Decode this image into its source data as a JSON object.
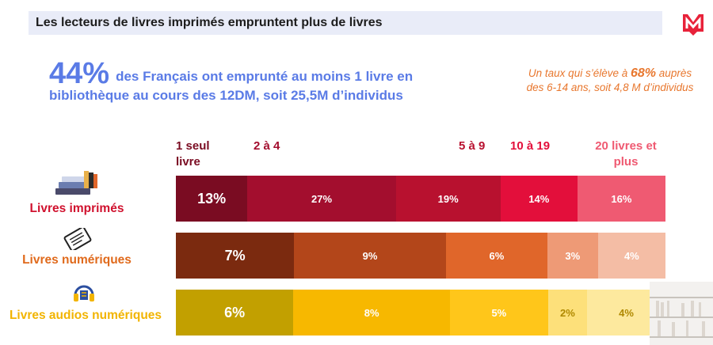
{
  "header": {
    "title": "Les lecteurs de livres imprimés empruntent plus de livres"
  },
  "headline": {
    "percent": "44%",
    "text": "des Français ont emprunté au moins 1 livre en bibliothèque au cours des 12DM, soit 25,5M d’individus"
  },
  "side_note": {
    "prefix": "Un taux qui s’élève à",
    "accent": "68%",
    "rest": "auprès des 6-14 ans, soit 4,8 M d’individus"
  },
  "colors": {
    "title_bg": "#e9ecf8",
    "headline": "#5a7be6",
    "side_note": "#e8772e",
    "logo": "#e8223a"
  },
  "chart_data": {
    "type": "bar",
    "orientation": "horizontal",
    "stacked": true,
    "categories": [
      "1 seul livre",
      "2 à 4",
      "5 à 9",
      "10 à 19",
      "20 livres et plus"
    ],
    "category_colors": [
      "#7a0c22",
      "#a30e2e",
      "#b8112f",
      "#e30f3b",
      "#ef5a72"
    ],
    "series": [
      {
        "name": "Livres imprimés",
        "icon": "books-icon",
        "label_color": "#d0112e",
        "values": [
          13,
          27,
          19,
          14,
          16
        ],
        "labels": [
          "13%",
          "27%",
          "19%",
          "14%",
          "16%"
        ],
        "colors": [
          "#7a0c22",
          "#a30e2e",
          "#b8112f",
          "#e30f3b",
          "#ef5a72"
        ],
        "text_colors": [
          "#ffffff",
          "#ffffff",
          "#ffffff",
          "#ffffff",
          "#ffffff"
        ]
      },
      {
        "name": "Livres numériques",
        "icon": "ereader-icon",
        "label_color": "#e06a1c",
        "values": [
          7,
          9,
          6,
          3,
          4
        ],
        "labels": [
          "7%",
          "9%",
          "6%",
          "3%",
          "4%"
        ],
        "colors": [
          "#7b2a0f",
          "#b3461a",
          "#e0662a",
          "#ee9a76",
          "#f4bda5"
        ],
        "text_colors": [
          "#ffffff",
          "#ffffff",
          "#ffffff",
          "#ffffff",
          "#ffffff"
        ]
      },
      {
        "name": "Livres audios numériques",
        "icon": "headphones-icon",
        "label_color": "#f2b400",
        "values": [
          6,
          8,
          5,
          2,
          4
        ],
        "labels": [
          "6%",
          "8%",
          "5%",
          "2%",
          "4%"
        ],
        "colors": [
          "#c2a000",
          "#f7b800",
          "#ffc61a",
          "#fde07a",
          "#fde99e"
        ],
        "text_colors": [
          "#ffffff",
          "#ffffff",
          "#ffffff",
          "#b08900",
          "#b08900"
        ]
      }
    ]
  }
}
